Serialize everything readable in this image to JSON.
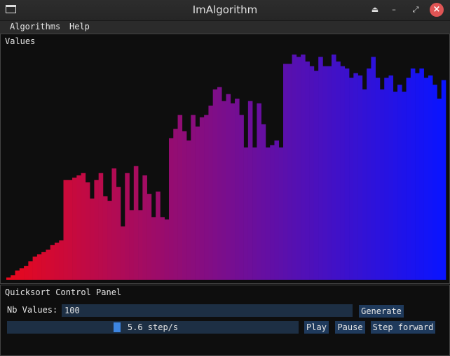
{
  "window": {
    "title": "ImAlgorithm"
  },
  "menu": {
    "items": [
      "Algorithms",
      "Help"
    ]
  },
  "values_panel": {
    "title": "Values"
  },
  "control_panel": {
    "title": "Quicksort Control Panel",
    "nb_values_label": "Nb Values:",
    "nb_values": "100",
    "generate_label": "Generate",
    "speed_text": "5.6 step/s",
    "speed_value": 5.6,
    "play_label": "Play",
    "pause_label": "Pause",
    "step_label": "Step forward"
  },
  "colors": {
    "bar_start": "#e8081c",
    "bar_end": "#0a14ff",
    "button": "#1f3a5c",
    "input": "#1d2f44",
    "slider_grab": "#3d85e0"
  },
  "chart_data": {
    "type": "bar",
    "values": [
      1,
      2,
      4,
      5,
      6,
      8,
      10,
      11,
      12,
      13,
      15,
      16,
      17,
      43,
      43,
      44,
      45,
      46,
      42,
      35,
      43,
      46,
      36,
      34,
      48,
      40,
      23,
      46,
      30,
      49,
      30,
      45,
      37,
      27,
      38,
      27,
      26,
      61,
      65,
      71,
      64,
      60,
      71,
      66,
      70,
      71,
      75,
      82,
      83,
      77,
      80,
      76,
      78,
      71,
      57,
      77,
      57,
      76,
      67,
      57,
      58,
      60,
      57,
      93,
      93,
      97,
      96,
      97,
      94,
      92,
      90,
      96,
      92,
      92,
      97,
      94,
      92,
      91,
      87,
      89,
      88,
      82,
      91,
      96,
      87,
      82,
      87,
      88,
      81,
      84,
      81,
      87,
      91,
      89,
      91,
      87,
      88,
      84,
      78,
      86
    ]
  }
}
